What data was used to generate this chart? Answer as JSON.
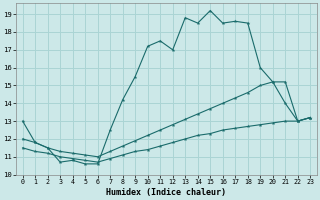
{
  "xlabel": "Humidex (Indice chaleur)",
  "background_color": "#cce8e8",
  "grid_color": "#aad4d4",
  "line_color": "#1a6b6b",
  "xlim": [
    -0.5,
    23.5
  ],
  "ylim": [
    10,
    19.6
  ],
  "yticks": [
    10,
    11,
    12,
    13,
    14,
    15,
    16,
    17,
    18,
    19
  ],
  "xticks": [
    0,
    1,
    2,
    3,
    4,
    5,
    6,
    7,
    8,
    9,
    10,
    11,
    12,
    13,
    14,
    15,
    16,
    17,
    18,
    19,
    20,
    21,
    22,
    23
  ],
  "x": [
    0,
    1,
    2,
    3,
    4,
    5,
    6,
    7,
    8,
    9,
    10,
    11,
    12,
    13,
    14,
    15,
    16,
    17,
    18,
    19,
    20,
    21,
    22,
    23
  ],
  "line1": [
    13.0,
    11.8,
    11.5,
    10.7,
    10.8,
    10.6,
    10.6,
    12.5,
    14.2,
    15.5,
    17.2,
    17.5,
    17.0,
    18.8,
    18.5,
    19.2,
    18.5,
    18.6,
    18.5,
    16.0,
    15.2,
    14.0,
    13.0,
    13.2
  ],
  "line2": [
    12.0,
    11.8,
    11.5,
    11.3,
    11.2,
    11.1,
    11.0,
    11.3,
    11.6,
    11.9,
    12.2,
    12.5,
    12.8,
    13.1,
    13.4,
    13.7,
    14.0,
    14.3,
    14.6,
    15.0,
    15.2,
    15.2,
    13.0,
    13.2
  ],
  "line3": [
    11.5,
    11.3,
    11.2,
    11.0,
    10.9,
    10.8,
    10.7,
    10.9,
    11.1,
    11.3,
    11.4,
    11.6,
    11.8,
    12.0,
    12.2,
    12.3,
    12.5,
    12.6,
    12.7,
    12.8,
    12.9,
    13.0,
    13.0,
    13.2
  ]
}
